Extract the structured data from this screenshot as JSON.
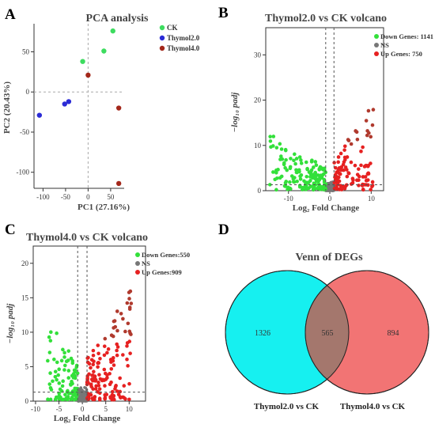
{
  "figure": {
    "panel_letters": [
      "A",
      "B",
      "C",
      "D"
    ]
  },
  "chart_data": [
    {
      "panel": "A",
      "type": "scatter",
      "title": "PCA analysis",
      "xlabel": "PC1 (27.16%)",
      "ylabel": "PC2 (20.43%)",
      "xlim": [
        -120,
        80
      ],
      "ylim": [
        -120,
        85
      ],
      "xticks": [
        -100,
        -50,
        0,
        50
      ],
      "yticks": [
        -100,
        -50,
        0,
        50
      ],
      "grid": false,
      "reference_lines": {
        "x": 0,
        "y": 0
      },
      "legend": {
        "position": "top-right"
      },
      "series": [
        {
          "name": "CK",
          "color": "#3ddc5f",
          "points": [
            [
              55,
              76
            ],
            [
              35,
              51
            ],
            [
              -12,
              38
            ]
          ]
        },
        {
          "name": "Thymol2.0",
          "color": "#2b2bd6",
          "points": [
            [
              -108,
              -29
            ],
            [
              -52,
              -15
            ],
            [
              -43,
              -12
            ]
          ]
        },
        {
          "name": "Thymol4.0",
          "color": "#a3271a",
          "points": [
            [
              0,
              21
            ],
            [
              68,
              -20
            ],
            [
              68,
              -114
            ]
          ]
        }
      ]
    },
    {
      "panel": "B",
      "type": "scatter",
      "title": "Thymol2.0 vs CK volcano",
      "xlabel": "Log₂ Fold Change",
      "ylabel": "−log₁₀ padj",
      "xlim": [
        -15.5,
        13
      ],
      "ylim": [
        0,
        36
      ],
      "xticks": [
        -10,
        0,
        10
      ],
      "yticks": [
        0,
        10,
        20,
        30
      ],
      "thresholds": {
        "log2fc": [
          -1,
          1
        ],
        "padj_line": 1.3
      },
      "legend": {
        "position": "top-right"
      },
      "series": [
        {
          "name": "Down Genes: 1141",
          "color": "#33e03a",
          "count": 1141
        },
        {
          "name": "NS",
          "color": "#777777"
        },
        {
          "name": "Up Genes: 750",
          "color": "#e62121",
          "count": 750
        }
      ]
    },
    {
      "panel": "C",
      "type": "scatter",
      "title": "Thymol4.0 vs CK volcano",
      "xlabel": "Log₂ Fold Change",
      "ylabel": "−log₁₀ padj",
      "xlim": [
        -10.5,
        13.5
      ],
      "ylim": [
        0,
        22.5
      ],
      "xticks": [
        -10,
        -5,
        0,
        5,
        10
      ],
      "yticks": [
        0,
        5,
        10,
        15,
        20
      ],
      "thresholds": {
        "log2fc": [
          -1,
          1
        ],
        "padj_line": 1.3
      },
      "legend": {
        "position": "top-right"
      },
      "series": [
        {
          "name": "Down Genes:550",
          "color": "#33e03a",
          "count": 550
        },
        {
          "name": "NS",
          "color": "#777777"
        },
        {
          "name": "Up Genes:909",
          "color": "#e62121",
          "count": 909
        }
      ]
    },
    {
      "panel": "D",
      "type": "venn",
      "title": "Venn of DEGs",
      "sets": [
        {
          "name": "Thymol2.0 vs CK",
          "color": "#16f0f0",
          "only": 1326
        },
        {
          "name": "Thymol4.0 vs CK",
          "color": "#f27474",
          "only": 894
        }
      ],
      "intersection": 565
    }
  ]
}
